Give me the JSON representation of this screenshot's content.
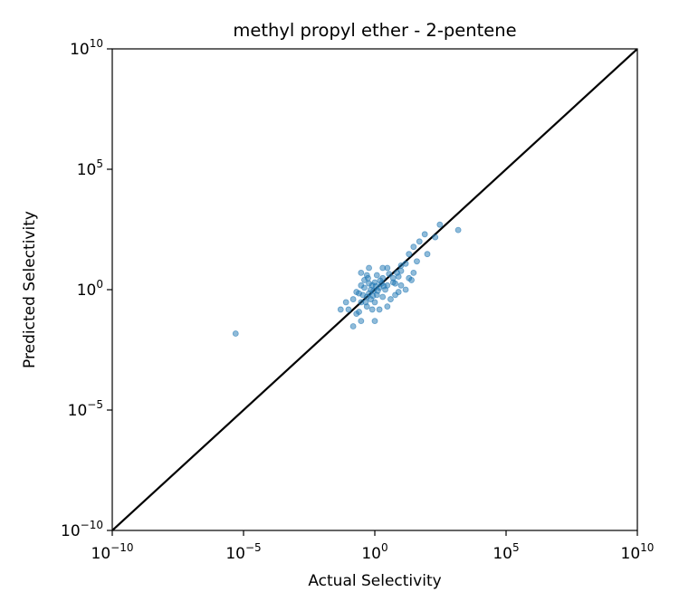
{
  "chart_data": {
    "type": "scatter",
    "title": "methyl propyl ether - 2-pentene",
    "xlabel": "Actual Selectivity",
    "ylabel": "Predicted Selectivity",
    "xscale": "log",
    "yscale": "log",
    "xlim": [
      1e-10,
      10000000000.0
    ],
    "ylim": [
      1e-10,
      10000000000.0
    ],
    "grid": false,
    "x_ticks": [
      {
        "base": "10",
        "exp": "−10"
      },
      {
        "base": "10",
        "exp": "−5"
      },
      {
        "base": "10",
        "exp": "0"
      },
      {
        "base": "10",
        "exp": "5"
      },
      {
        "base": "10",
        "exp": "10"
      }
    ],
    "y_ticks": [
      {
        "base": "10",
        "exp": "−10"
      },
      {
        "base": "10",
        "exp": "−5"
      },
      {
        "base": "10",
        "exp": "0"
      },
      {
        "base": "10",
        "exp": "5"
      },
      {
        "base": "10",
        "exp": "10"
      }
    ],
    "reference_line": {
      "from": [
        1e-10,
        1e-10
      ],
      "to": [
        10000000000.0,
        10000000000.0
      ],
      "color": "#000000"
    },
    "point_color": "#1f77b4",
    "points": [
      [
        5e-06,
        0.015
      ],
      [
        1500.0,
        300.0
      ],
      [
        300.0,
        500.0
      ],
      [
        200.0,
        150.0
      ],
      [
        50.0,
        100.0
      ],
      [
        80.0,
        200.0
      ],
      [
        30.0,
        60.0
      ],
      [
        100.0,
        30.0
      ],
      [
        40.0,
        15.0
      ],
      [
        20.0,
        30.0
      ],
      [
        15.0,
        12.0
      ],
      [
        30.0,
        5.0
      ],
      [
        10.0,
        10.0
      ],
      [
        7.0,
        5.0
      ],
      [
        5.0,
        2.0
      ],
      [
        20.0,
        3.0
      ],
      [
        10.0,
        1.5
      ],
      [
        25.0,
        2.5
      ],
      [
        15.0,
        1.0
      ],
      [
        8.0,
        0.8
      ],
      [
        5.0,
        3.0
      ],
      [
        3.0,
        8.0
      ],
      [
        3.0,
        1.5
      ],
      [
        2.0,
        3.0
      ],
      [
        1.5,
        1.2
      ],
      [
        1.0,
        2.0
      ],
      [
        1.2,
        0.6
      ],
      [
        0.7,
        1.0
      ],
      [
        0.5,
        0.5
      ],
      [
        0.3,
        0.3
      ],
      [
        0.2,
        0.1
      ],
      [
        0.1,
        0.15
      ],
      [
        0.15,
        0.4
      ],
      [
        0.2,
        0.8
      ],
      [
        0.3,
        1.5
      ],
      [
        0.4,
        2.5
      ],
      [
        0.5,
        4.0
      ],
      [
        0.3,
        5.0
      ],
      [
        0.6,
        8.0
      ],
      [
        0.8,
        1.5
      ],
      [
        0.5,
        0.2
      ],
      [
        0.8,
        0.15
      ],
      [
        1.0,
        0.05
      ],
      [
        0.3,
        0.05
      ],
      [
        0.15,
        0.03
      ],
      [
        0.25,
        0.12
      ],
      [
        0.45,
        0.3
      ],
      [
        0.6,
        0.7
      ],
      [
        1.0,
        0.3
      ],
      [
        1.3,
        0.9
      ],
      [
        2.0,
        0.5
      ],
      [
        4.0,
        0.4
      ],
      [
        3.0,
        0.2
      ],
      [
        2.5,
        1.0
      ],
      [
        6.0,
        1.8
      ],
      [
        8.0,
        3.5
      ],
      [
        1.8,
        1.8
      ],
      [
        0.9,
        0.9
      ],
      [
        0.4,
        1.2
      ],
      [
        0.7,
        0.4
      ],
      [
        0.05,
        0.15
      ],
      [
        0.08,
        0.3
      ],
      [
        1.5,
        0.15
      ],
      [
        6.0,
        0.6
      ],
      [
        1.2,
        4.0
      ],
      [
        2.0,
        8.0
      ],
      [
        0.35,
        0.6
      ],
      [
        0.6,
        1.8
      ],
      [
        1.1,
        1.4
      ],
      [
        0.85,
        0.55
      ],
      [
        1.6,
        2.4
      ],
      [
        2.2,
        1.4
      ],
      [
        0.55,
        3.0
      ],
      [
        0.25,
        0.7
      ],
      [
        3.5,
        4.5
      ],
      [
        10.0,
        6.0
      ]
    ]
  }
}
